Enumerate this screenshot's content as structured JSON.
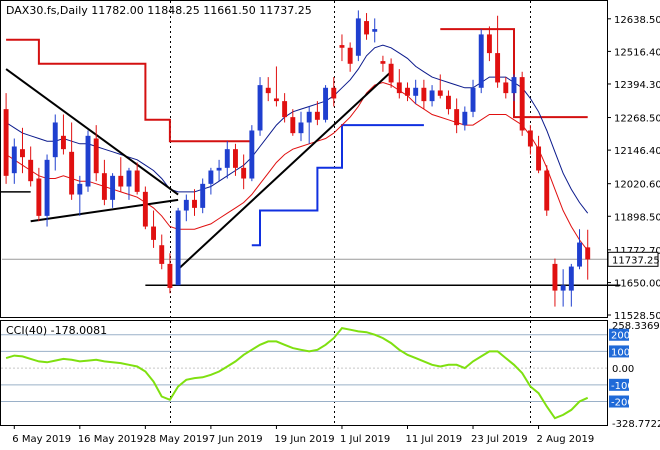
{
  "header": {
    "text": "DAX30.fs,Daily  11782.00 11848.25 11661.50 11737.25"
  },
  "cci_header": {
    "text": "CCI(40) -178.0081"
  },
  "colors": {
    "bull": "#1f3fcf",
    "bear": "#e01010",
    "envelope": "#e01010",
    "ma": "#0b1a8c",
    "trail_sell": "#d41010",
    "trail_buy": "#1030e0",
    "trendline": "#000000",
    "cci_line": "#7fe010",
    "cci_level": "#1f6ad8",
    "price_tag_bg": "#ffffff",
    "price_tag_border": "#000000"
  },
  "chart_data": [
    {
      "type": "candlestick",
      "title": "DAX30.fs,Daily",
      "last_ohlc": {
        "open": 11782.0,
        "high": 11848.25,
        "low": 11661.5,
        "close": 11737.25
      },
      "current_price": 11737.25,
      "ylim": [
        11528.5,
        12694.0
      ],
      "y_ticks": [
        "12638.50",
        "12516.40",
        "12394.30",
        "12268.50",
        "12146.40",
        "12020.60",
        "11898.50",
        "11772.70",
        "11650.00",
        "11528.50"
      ],
      "x_ticks": [
        "6 May 2019",
        "16 May 2019",
        "28 May 2019",
        "7 Jun 2019",
        "19 Jun 2019",
        "1 Jul 2019",
        "11 Jul 2019",
        "23 Jul 2019",
        "2 Aug 2019"
      ],
      "x_tick_index": [
        1,
        9,
        17,
        25,
        33,
        41,
        49,
        57,
        65
      ],
      "vlines_index": [
        20,
        40,
        64
      ],
      "candles": [
        {
          "o": 12300,
          "h": 12360,
          "l": 12020,
          "c": 12050
        },
        {
          "o": 12060,
          "h": 12190,
          "l": 12020,
          "c": 12160
        },
        {
          "o": 12150,
          "h": 12230,
          "l": 12060,
          "c": 12120
        },
        {
          "o": 12110,
          "h": 12160,
          "l": 12010,
          "c": 12030
        },
        {
          "o": 12040,
          "h": 12080,
          "l": 11880,
          "c": 11900
        },
        {
          "o": 11900,
          "h": 12130,
          "l": 11860,
          "c": 12110
        },
        {
          "o": 12120,
          "h": 12280,
          "l": 12070,
          "c": 12250
        },
        {
          "o": 12200,
          "h": 12280,
          "l": 12130,
          "c": 12150
        },
        {
          "o": 12140,
          "h": 12250,
          "l": 11960,
          "c": 11980
        },
        {
          "o": 11980,
          "h": 12050,
          "l": 11900,
          "c": 12020
        },
        {
          "o": 12010,
          "h": 12220,
          "l": 11990,
          "c": 12200
        },
        {
          "o": 12190,
          "h": 12240,
          "l": 12030,
          "c": 12060
        },
        {
          "o": 12060,
          "h": 12110,
          "l": 11940,
          "c": 11960
        },
        {
          "o": 11960,
          "h": 12060,
          "l": 11930,
          "c": 12050
        },
        {
          "o": 12050,
          "h": 12120,
          "l": 11990,
          "c": 12010
        },
        {
          "o": 12010,
          "h": 12080,
          "l": 11960,
          "c": 12070
        },
        {
          "o": 12070,
          "h": 12100,
          "l": 11980,
          "c": 11990
        },
        {
          "o": 11990,
          "h": 12010,
          "l": 11850,
          "c": 11860
        },
        {
          "o": 11860,
          "h": 11920,
          "l": 11780,
          "c": 11810
        },
        {
          "o": 11790,
          "h": 11830,
          "l": 11700,
          "c": 11720
        },
        {
          "o": 11720,
          "h": 11760,
          "l": 11610,
          "c": 11630
        },
        {
          "o": 11640,
          "h": 11930,
          "l": 11640,
          "c": 11920
        },
        {
          "o": 11920,
          "h": 11980,
          "l": 11880,
          "c": 11960
        },
        {
          "o": 11960,
          "h": 12000,
          "l": 11900,
          "c": 11930
        },
        {
          "o": 11930,
          "h": 12040,
          "l": 11910,
          "c": 12020
        },
        {
          "o": 12020,
          "h": 12080,
          "l": 11980,
          "c": 12070
        },
        {
          "o": 12070,
          "h": 12110,
          "l": 12030,
          "c": 12080
        },
        {
          "o": 12080,
          "h": 12180,
          "l": 12040,
          "c": 12150
        },
        {
          "o": 12150,
          "h": 12170,
          "l": 12050,
          "c": 12080
        },
        {
          "o": 12080,
          "h": 12130,
          "l": 12000,
          "c": 12040
        },
        {
          "o": 12040,
          "h": 12240,
          "l": 12030,
          "c": 12220
        },
        {
          "o": 12220,
          "h": 12420,
          "l": 12200,
          "c": 12390
        },
        {
          "o": 12380,
          "h": 12420,
          "l": 12330,
          "c": 12360
        },
        {
          "o": 12340,
          "h": 12460,
          "l": 12310,
          "c": 12330
        },
        {
          "o": 12330,
          "h": 12360,
          "l": 12250,
          "c": 12270
        },
        {
          "o": 12270,
          "h": 12300,
          "l": 12200,
          "c": 12210
        },
        {
          "o": 12210,
          "h": 12290,
          "l": 12180,
          "c": 12250
        },
        {
          "o": 12250,
          "h": 12310,
          "l": 12170,
          "c": 12290
        },
        {
          "o": 12290,
          "h": 12330,
          "l": 12240,
          "c": 12260
        },
        {
          "o": 12260,
          "h": 12390,
          "l": 12250,
          "c": 12380
        },
        {
          "o": 12380,
          "h": 12420,
          "l": 12310,
          "c": 12340
        },
        {
          "o": 12540,
          "h": 12580,
          "l": 12480,
          "c": 12530
        },
        {
          "o": 12530,
          "h": 12550,
          "l": 12440,
          "c": 12470
        },
        {
          "o": 12500,
          "h": 12670,
          "l": 12480,
          "c": 12640
        },
        {
          "o": 12630,
          "h": 12660,
          "l": 12560,
          "c": 12580
        },
        {
          "o": 12590,
          "h": 12640,
          "l": 12550,
          "c": 12600
        },
        {
          "o": 12480,
          "h": 12500,
          "l": 12440,
          "c": 12470
        },
        {
          "o": 12470,
          "h": 12490,
          "l": 12380,
          "c": 12400
        },
        {
          "o": 12400,
          "h": 12450,
          "l": 12340,
          "c": 12360
        },
        {
          "o": 12380,
          "h": 12400,
          "l": 12330,
          "c": 12350
        },
        {
          "o": 12350,
          "h": 12410,
          "l": 12320,
          "c": 12380
        },
        {
          "o": 12380,
          "h": 12410,
          "l": 12300,
          "c": 12330
        },
        {
          "o": 12330,
          "h": 12390,
          "l": 12310,
          "c": 12370
        },
        {
          "o": 12370,
          "h": 12430,
          "l": 12340,
          "c": 12350
        },
        {
          "o": 12350,
          "h": 12370,
          "l": 12280,
          "c": 12300
        },
        {
          "o": 12300,
          "h": 12340,
          "l": 12210,
          "c": 12240
        },
        {
          "o": 12240,
          "h": 12310,
          "l": 12220,
          "c": 12290
        },
        {
          "o": 12290,
          "h": 12410,
          "l": 12270,
          "c": 12380
        },
        {
          "o": 12380,
          "h": 12600,
          "l": 12360,
          "c": 12580
        },
        {
          "o": 12580,
          "h": 12610,
          "l": 12480,
          "c": 12510
        },
        {
          "o": 12510,
          "h": 12650,
          "l": 12380,
          "c": 12400
        },
        {
          "o": 12400,
          "h": 12420,
          "l": 12340,
          "c": 12360
        },
        {
          "o": 12360,
          "h": 12430,
          "l": 12330,
          "c": 12420
        },
        {
          "o": 12420,
          "h": 12440,
          "l": 12200,
          "c": 12220
        },
        {
          "o": 12220,
          "h": 12240,
          "l": 12130,
          "c": 12160
        },
        {
          "o": 12160,
          "h": 12200,
          "l": 12060,
          "c": 12070
        },
        {
          "o": 12070,
          "h": 12090,
          "l": 11900,
          "c": 11920
        },
        {
          "o": 11720,
          "h": 11740,
          "l": 11560,
          "c": 11620
        },
        {
          "o": 11620,
          "h": 11700,
          "l": 11560,
          "c": 11640
        },
        {
          "o": 11620,
          "h": 11720,
          "l": 11560,
          "c": 11710
        },
        {
          "o": 11710,
          "h": 11850,
          "l": 11700,
          "c": 11800
        },
        {
          "o": 11782,
          "h": 11848,
          "l": 11661,
          "c": 11737
        }
      ],
      "ma_line": [
        12250,
        12230,
        12210,
        12200,
        12190,
        12180,
        12180,
        12190,
        12180,
        12170,
        12170,
        12160,
        12150,
        12140,
        12130,
        12120,
        12110,
        12090,
        12070,
        12040,
        12000,
        11990,
        11990,
        11990,
        12000,
        12010,
        12030,
        12050,
        12070,
        12090,
        12120,
        12160,
        12200,
        12240,
        12270,
        12290,
        12300,
        12310,
        12320,
        12330,
        12350,
        12380,
        12410,
        12450,
        12500,
        12530,
        12540,
        12530,
        12510,
        12490,
        12460,
        12440,
        12420,
        12410,
        12400,
        12390,
        12380,
        12380,
        12400,
        12420,
        12420,
        12420,
        12400,
        12380,
        12340,
        12290,
        12220,
        12140,
        12060,
        12000,
        11950,
        11910
      ],
      "envelope_line": [
        12130,
        12110,
        12090,
        12070,
        12050,
        12040,
        12040,
        12050,
        12040,
        12030,
        12030,
        12020,
        12010,
        12000,
        11990,
        11980,
        11970,
        11950,
        11930,
        11900,
        11860,
        11850,
        11850,
        11850,
        11860,
        11870,
        11890,
        11910,
        11930,
        11950,
        11980,
        12020,
        12060,
        12100,
        12130,
        12150,
        12160,
        12170,
        12180,
        12190,
        12210,
        12240,
        12270,
        12310,
        12360,
        12390,
        12400,
        12390,
        12370,
        12350,
        12320,
        12300,
        12280,
        12270,
        12260,
        12250,
        12240,
        12240,
        12260,
        12280,
        12280,
        12280,
        12260,
        12240,
        12200,
        12150,
        12080,
        12000,
        11920,
        11860,
        11810,
        11770
      ],
      "trail_sell": [
        {
          "i": 0,
          "y": 12560
        },
        {
          "i": 4,
          "y": 12560
        },
        {
          "i": 4,
          "y": 12470
        },
        {
          "i": 17,
          "y": 12470
        },
        {
          "i": 17,
          "y": 12260
        },
        {
          "i": 20,
          "y": 12260
        },
        {
          "i": 20,
          "y": 12180
        },
        {
          "i": 30,
          "y": 12180
        }
      ],
      "trail_sell_2": [
        {
          "i": 53,
          "y": 12600
        },
        {
          "i": 62,
          "y": 12600
        },
        {
          "i": 62,
          "y": 12270
        },
        {
          "i": 66,
          "y": 12270
        },
        {
          "i": 66,
          "y": 12270
        },
        {
          "i": 71,
          "y": 12270
        }
      ],
      "trail_buy": [
        {
          "i": 30,
          "y": 11790
        },
        {
          "i": 31,
          "y": 11790
        },
        {
          "i": 31,
          "y": 11920
        },
        {
          "i": 38,
          "y": 11920
        },
        {
          "i": 38,
          "y": 12080
        },
        {
          "i": 41,
          "y": 12080
        },
        {
          "i": 41,
          "y": 12240
        },
        {
          "i": 51,
          "y": 12240
        }
      ],
      "support_line_right": [
        {
          "i": 17,
          "y": 11640
        },
        {
          "i": 75,
          "y": 11640
        }
      ],
      "short_black_left": [
        {
          "i": -1,
          "y": 11990
        },
        {
          "i": 3,
          "y": 11990
        }
      ],
      "trendlines": [
        [
          {
            "i": 0,
            "y": 12450
          },
          {
            "i": 21,
            "y": 11980
          }
        ],
        [
          {
            "i": 3,
            "y": 11880
          },
          {
            "i": 21,
            "y": 11960
          }
        ],
        [
          {
            "i": 21,
            "y": 11700
          },
          {
            "i": 47,
            "y": 12440
          }
        ]
      ]
    },
    {
      "type": "line",
      "title": "CCI(40) -178.0081",
      "last_value": -178.0081,
      "ylim": [
        -328.7722,
        258.3369
      ],
      "y_ticks": [
        "258.3369",
        "200",
        "100",
        "0.00",
        "-100",
        "-200",
        "-328.7722"
      ],
      "levels": [
        200,
        100,
        -100,
        -200
      ],
      "highlighted_levels": [
        "200",
        "100",
        "-100",
        "-200"
      ],
      "values": [
        60,
        75,
        70,
        55,
        40,
        35,
        45,
        55,
        50,
        40,
        45,
        50,
        40,
        35,
        30,
        20,
        10,
        -20,
        -80,
        -170,
        -190,
        -110,
        -70,
        -60,
        -55,
        -40,
        -20,
        10,
        40,
        80,
        110,
        140,
        160,
        160,
        140,
        120,
        110,
        100,
        110,
        140,
        180,
        240,
        230,
        220,
        215,
        200,
        180,
        150,
        110,
        80,
        60,
        40,
        20,
        10,
        20,
        20,
        0,
        40,
        70,
        100,
        100,
        60,
        20,
        -30,
        -110,
        -150,
        -230,
        -300,
        -280,
        -250,
        -200,
        -178
      ]
    }
  ]
}
